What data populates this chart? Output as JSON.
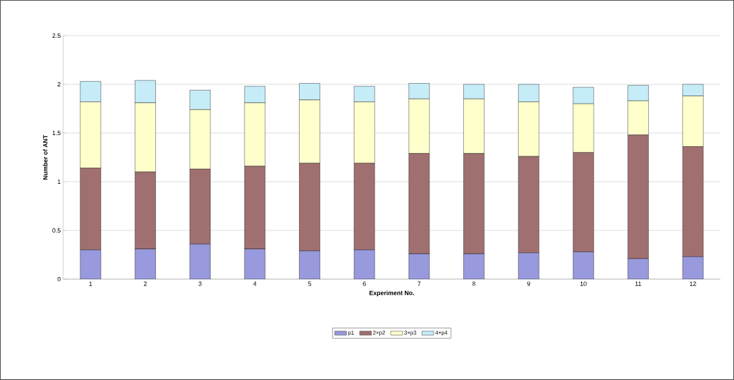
{
  "chart_data": {
    "type": "bar",
    "stacked": true,
    "xlabel": "Experiment No.",
    "ylabel": "Number of ANT",
    "categories": [
      "1",
      "2",
      "3",
      "4",
      "5",
      "6",
      "7",
      "8",
      "9",
      "10",
      "11",
      "12"
    ],
    "series": [
      {
        "name": "p1",
        "color": "#9999dd",
        "values": [
          0.3,
          0.31,
          0.36,
          0.31,
          0.29,
          0.3,
          0.26,
          0.26,
          0.27,
          0.28,
          0.21,
          0.23
        ]
      },
      {
        "name": "2×p2",
        "color": "#a07070",
        "values": [
          0.84,
          0.79,
          0.77,
          0.85,
          0.9,
          0.89,
          1.03,
          1.03,
          0.99,
          1.02,
          1.27,
          1.13
        ]
      },
      {
        "name": "3×p3",
        "color": "#ffffcc",
        "values": [
          0.68,
          0.71,
          0.61,
          0.65,
          0.65,
          0.63,
          0.56,
          0.56,
          0.56,
          0.5,
          0.35,
          0.52
        ]
      },
      {
        "name": "4×p4",
        "color": "#c6ecf8",
        "values": [
          0.21,
          0.23,
          0.2,
          0.17,
          0.17,
          0.16,
          0.16,
          0.15,
          0.18,
          0.17,
          0.16,
          0.12
        ]
      }
    ],
    "ylim": [
      0,
      2.5
    ],
    "yticks": [
      0,
      0.5,
      1,
      1.5,
      2,
      2.5
    ],
    "grid": "y",
    "legend": "bottom"
  }
}
